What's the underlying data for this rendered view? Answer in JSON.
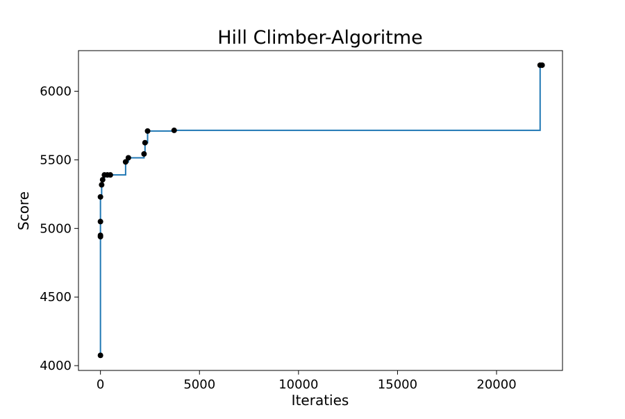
{
  "chart_data": {
    "type": "line",
    "title": "Hill Climber-Algoritme",
    "xlabel": "Iteraties",
    "ylabel": "Score",
    "xlim": [
      -1110,
      23330
    ],
    "ylim": [
      3965,
      6296
    ],
    "grid": false,
    "legend": "none",
    "x_ticks": [
      {
        "value": 0,
        "label": "0"
      },
      {
        "value": 5000,
        "label": "5000"
      },
      {
        "value": 10000,
        "label": "10000"
      },
      {
        "value": 15000,
        "label": "15000"
      },
      {
        "value": 20000,
        "label": "20000"
      }
    ],
    "y_ticks": [
      {
        "value": 4000,
        "label": "4000"
      },
      {
        "value": 4500,
        "label": "4500"
      },
      {
        "value": 5000,
        "label": "5000"
      },
      {
        "value": 5500,
        "label": "5500"
      },
      {
        "value": 6000,
        "label": "6000"
      }
    ],
    "series": [
      {
        "style": "step",
        "color": "#1f77b4",
        "x": [
          0,
          0,
          0,
          0,
          0,
          60,
          60,
          110,
          110,
          200,
          200,
          350,
          500,
          1270,
          1270,
          1410,
          1410,
          2200,
          2200,
          2250,
          2250,
          2380,
          2380,
          3720,
          22200,
          22200,
          22300
        ],
        "y": [
          4075,
          4940,
          4950,
          5050,
          5230,
          5230,
          5318,
          5318,
          5355,
          5355,
          5390,
          5390,
          5390,
          5390,
          5485,
          5485,
          5515,
          5515,
          5543,
          5543,
          5625,
          5625,
          5710,
          5715,
          5715,
          6190,
          6190
        ]
      }
    ],
    "points": {
      "color": "#000000",
      "x": [
        0,
        0,
        0,
        0,
        0,
        60,
        110,
        200,
        350,
        500,
        1270,
        1410,
        2200,
        2250,
        2380,
        3720,
        22200,
        22300
      ],
      "y": [
        4075,
        4940,
        4950,
        5050,
        5230,
        5318,
        5355,
        5390,
        5390,
        5390,
        5485,
        5515,
        5543,
        5625,
        5710,
        5715,
        6190,
        6190
      ]
    }
  }
}
